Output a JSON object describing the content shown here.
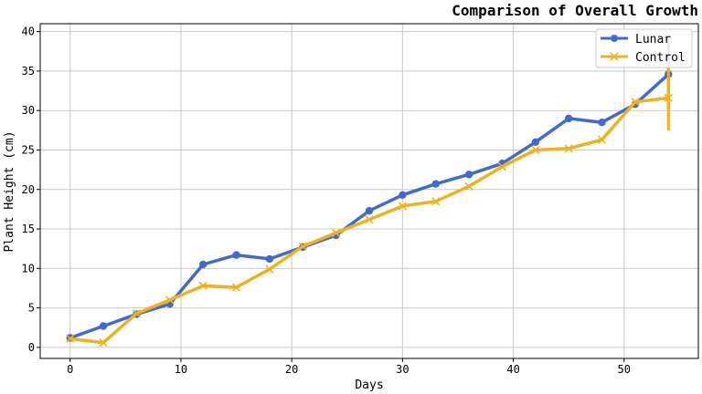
{
  "chart_data": {
    "type": "line",
    "title": "Comparison of Overall Growth",
    "xlabel": "Days",
    "ylabel": "Plant Height (cm)",
    "xlim": [
      -2.7,
      56.7
    ],
    "ylim": [
      -1.4,
      41
    ],
    "xticks": [
      0,
      10,
      20,
      30,
      40,
      50
    ],
    "yticks": [
      0,
      5,
      10,
      15,
      20,
      25,
      30,
      35,
      40
    ],
    "grid": true,
    "legend_position": "top-right",
    "x": [
      0,
      3,
      6,
      9,
      12,
      15,
      18,
      21,
      24,
      27,
      30,
      33,
      36,
      39,
      42,
      45,
      48,
      51,
      54
    ],
    "series": [
      {
        "name": "Lunar",
        "color": "#4169cf",
        "marker": "circle",
        "values": [
          1.2,
          2.7,
          4.2,
          5.5,
          10.5,
          11.7,
          11.2,
          12.7,
          14.2,
          17.3,
          19.3,
          20.7,
          21.9,
          23.3,
          26.0,
          29.0,
          28.5,
          30.8,
          34.6
        ],
        "error_last": 4.5
      },
      {
        "name": "Control",
        "color": "#eeb121",
        "marker": "x",
        "values": [
          1.1,
          0.6,
          4.3,
          6.0,
          7.8,
          7.6,
          9.9,
          12.8,
          14.5,
          16.2,
          17.9,
          18.5,
          20.4,
          22.9,
          25.0,
          25.2,
          26.3,
          31.1,
          31.6
        ],
        "error_last": 4.1
      }
    ]
  }
}
